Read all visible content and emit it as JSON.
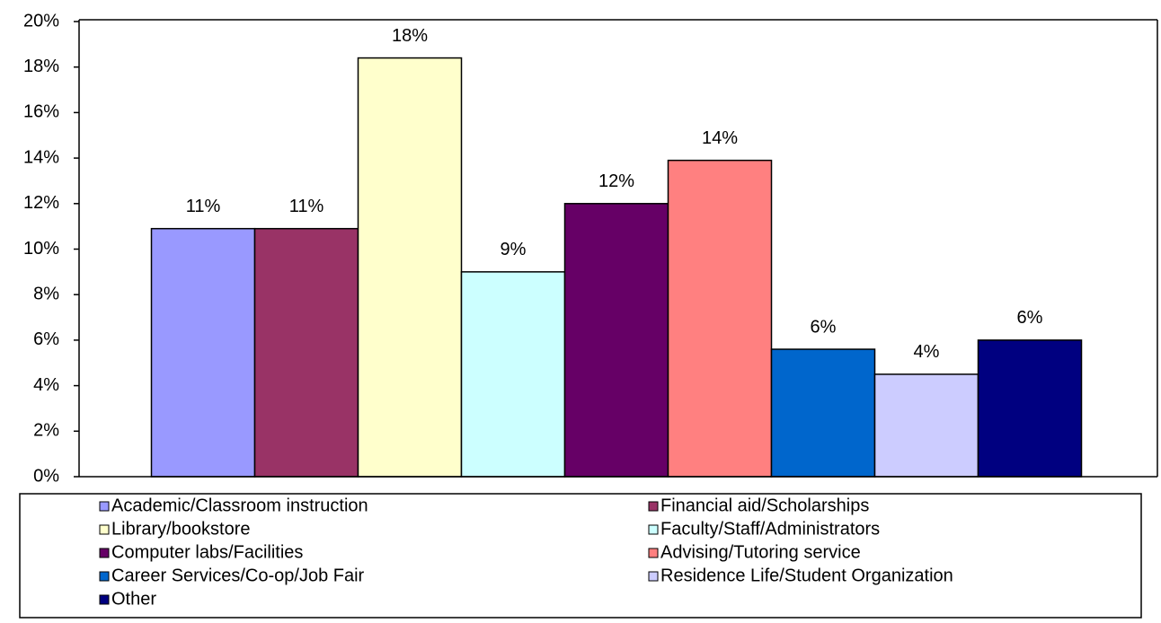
{
  "chart_data": {
    "type": "bar",
    "series": [
      {
        "name": "Academic/Classroom instruction",
        "color": "#9999ff",
        "values": [
          10.9
        ],
        "value_labels": [
          "11%"
        ]
      },
      {
        "name": "Financial aid/Scholarships",
        "color": "#993366",
        "values": [
          10.9
        ],
        "value_labels": [
          "11%"
        ]
      },
      {
        "name": "Library/bookstore",
        "color": "#ffffcc",
        "values": [
          18.4
        ],
        "value_labels": [
          "18%"
        ]
      },
      {
        "name": "Faculty/Staff/Administrators",
        "color": "#ccffff",
        "values": [
          9.0
        ],
        "value_labels": [
          "9%"
        ]
      },
      {
        "name": "Computer labs/Facilities",
        "color": "#660066",
        "values": [
          12.0
        ],
        "value_labels": [
          "12%"
        ]
      },
      {
        "name": "Advising/Tutoring service",
        "color": "#ff8080",
        "values": [
          13.9
        ],
        "value_labels": [
          "14%"
        ]
      },
      {
        "name": "Career Services/Co-op/Job Fair",
        "color": "#0066cc",
        "values": [
          5.6
        ],
        "value_labels": [
          "6%"
        ]
      },
      {
        "name": "Residence Life/Student Organization",
        "color": "#ccccff",
        "values": [
          4.5
        ],
        "value_labels": [
          "4%"
        ]
      },
      {
        "name": "Other",
        "color": "#000080",
        "values": [
          6.0
        ],
        "value_labels": [
          "6%"
        ]
      }
    ],
    "ylim": [
      0,
      20
    ],
    "yticks": [
      {
        "value": 0,
        "label": "0%"
      },
      {
        "value": 2,
        "label": "2%"
      },
      {
        "value": 4,
        "label": "4%"
      },
      {
        "value": 6,
        "label": "6%"
      },
      {
        "value": 8,
        "label": "8%"
      },
      {
        "value": 10,
        "label": "10%"
      },
      {
        "value": 12,
        "label": "12%"
      },
      {
        "value": 14,
        "label": "14%"
      },
      {
        "value": 16,
        "label": "16%"
      },
      {
        "value": 18,
        "label": "18%"
      },
      {
        "value": 20,
        "label": "20%"
      }
    ],
    "legend": "bottom"
  }
}
